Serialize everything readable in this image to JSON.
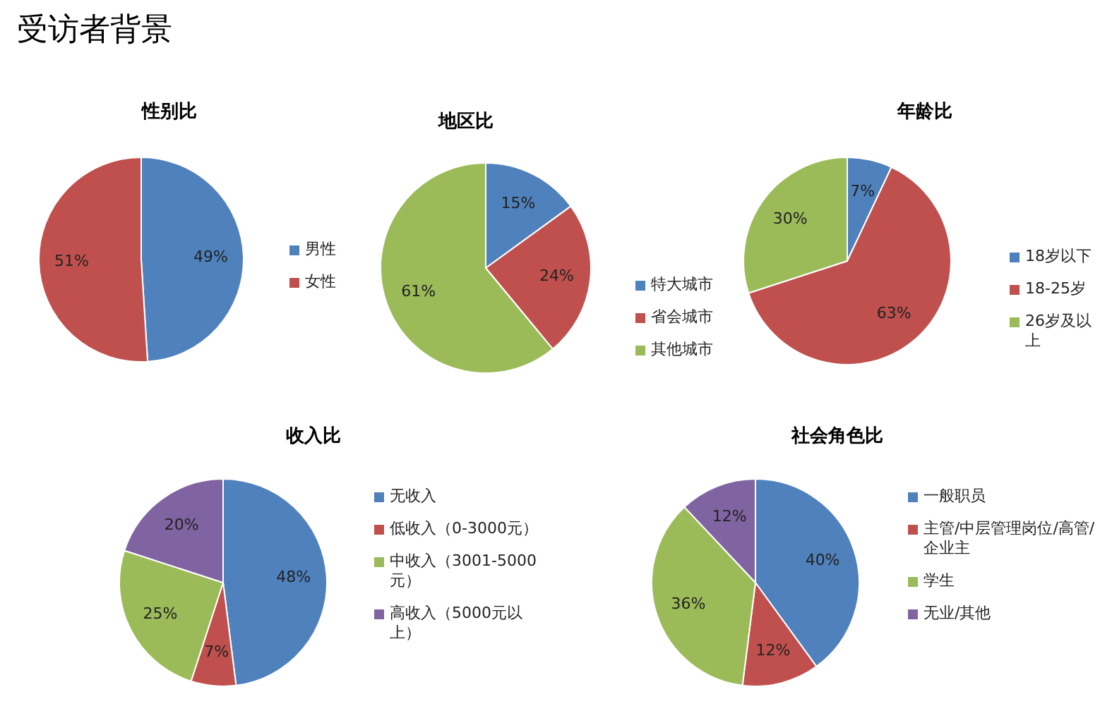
{
  "chart_data": [
    {
      "type": "other",
      "title": "受访者背景"
    },
    {
      "type": "pie",
      "title": "性别比",
      "categories": [
        "男性",
        "女性"
      ],
      "values": [
        49,
        51
      ],
      "colors": [
        "#4f81bd",
        "#c0504d"
      ],
      "value_labels": [
        "49%",
        "51%"
      ],
      "legend": "right"
    },
    {
      "type": "pie",
      "title": "地区比",
      "categories": [
        "特大城市",
        "省会城市",
        "其他城市"
      ],
      "values": [
        15,
        24,
        61
      ],
      "colors": [
        "#4f81bd",
        "#c0504d",
        "#9bbb59"
      ],
      "value_labels": [
        "15%",
        "24%",
        "61%"
      ],
      "legend": "right"
    },
    {
      "type": "pie",
      "title": "年龄比",
      "categories": [
        "18岁以下",
        "18-25岁",
        "26岁及以上"
      ],
      "values": [
        7,
        63,
        30
      ],
      "colors": [
        "#4f81bd",
        "#c0504d",
        "#9bbb59"
      ],
      "value_labels": [
        "7%",
        "63%",
        "30%"
      ],
      "legend": "right"
    },
    {
      "type": "pie",
      "title": "收入比",
      "categories": [
        "无收入",
        "低收入（0-3000元）",
        "中收入（3001-5000元）",
        "高收入（5000元以上）"
      ],
      "values": [
        48,
        7,
        25,
        20
      ],
      "colors": [
        "#4f81bd",
        "#c0504d",
        "#9bbb59",
        "#8064a2"
      ],
      "value_labels": [
        "48%",
        "7%",
        "25%",
        "20%"
      ],
      "legend": "right"
    },
    {
      "type": "pie",
      "title": "社会角色比",
      "categories": [
        "一般职员",
        "主管/中层管理岗位/高管/企业主",
        "学生",
        "无业/其他"
      ],
      "values": [
        40,
        12,
        36,
        12
      ],
      "colors": [
        "#4f81bd",
        "#c0504d",
        "#9bbb59",
        "#8064a2"
      ],
      "value_labels": [
        "40%",
        "12%",
        "36%",
        "12%"
      ],
      "legend": "right"
    }
  ]
}
